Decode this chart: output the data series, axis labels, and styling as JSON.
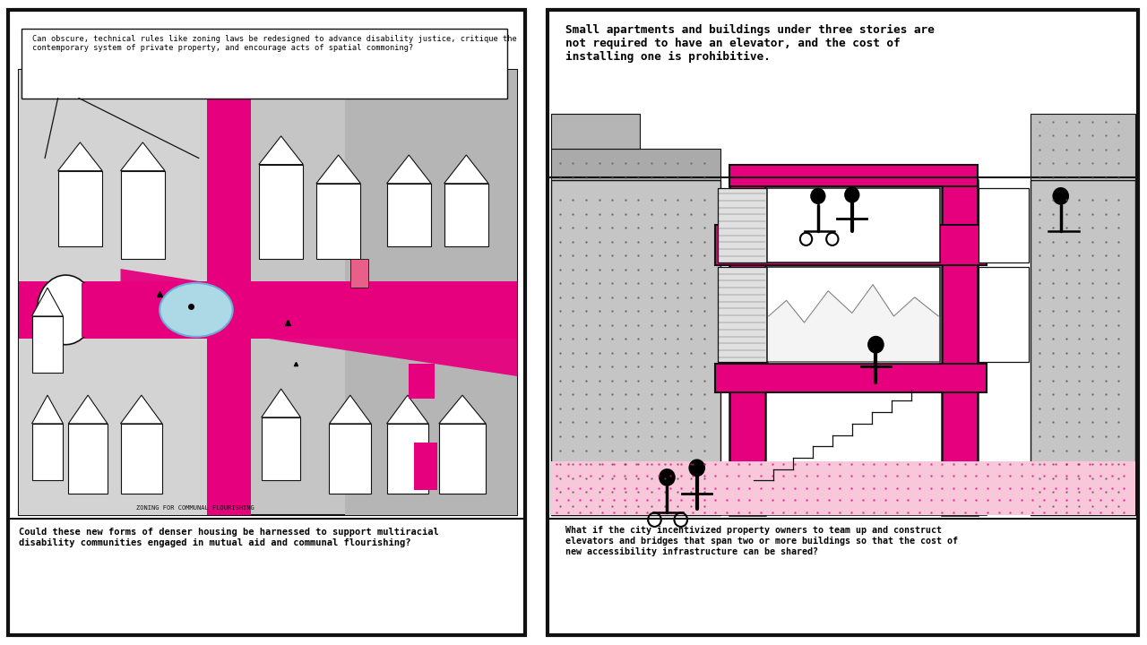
{
  "left_panel": {
    "border_color": "#111111",
    "magenta": "#e6007e",
    "light_blue": "#add8e6",
    "text_box_text": "Can obscure, technical rules like zoning laws be redesigned to advance disability justice, critique the\ncontemporary system of private property, and encourage acts of spatial commoning?",
    "bottom_text": "Could these new forms of denser housing be harnessed to support multiracial\ndisability communities engaged in mutual aid and communal flourishing?",
    "caption": "ZONING FOR COMMUNAL FLOURISHING"
  },
  "right_panel": {
    "border_color": "#111111",
    "magenta": "#e6007e",
    "top_text": "Small apartments and buildings under three stories are\nnot required to have an elevator, and the cost of\ninstalling one is prohibitive.",
    "bottom_text": "What if the city incentivized property owners to team up and construct\nelevators and bridges that span two or more buildings so that the cost of\nnew accessibility infrastructure can be shared?"
  }
}
